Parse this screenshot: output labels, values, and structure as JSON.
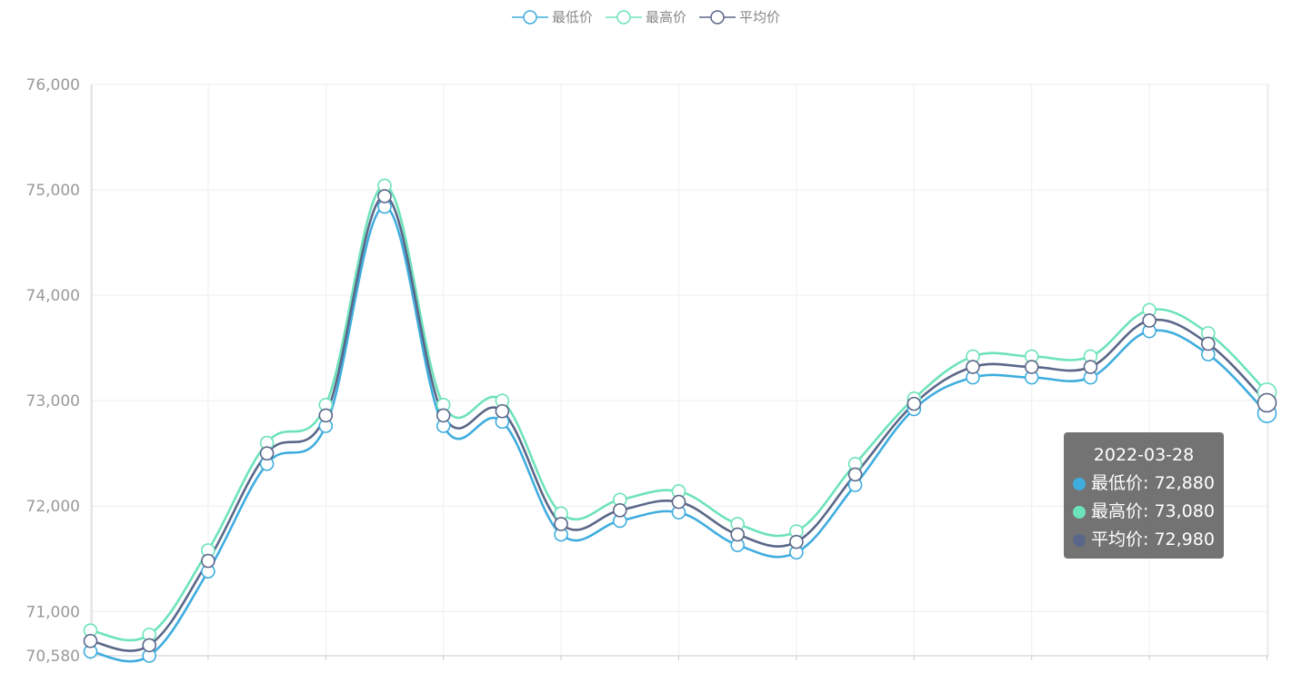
{
  "legend": [
    {
      "label": "最低价",
      "color": "#3fadde"
    },
    {
      "label": "最高价",
      "color": "#6de3bb"
    },
    {
      "label": "平均价",
      "color": "#5b6789"
    }
  ],
  "tooltip": {
    "date": "2022-03-28",
    "rows": [
      {
        "label": "最低价: 72,880",
        "color": "#3fadde"
      },
      {
        "label": "最高价: 73,080",
        "color": "#6de3bb"
      },
      {
        "label": "平均价: 72,980",
        "color": "#5b6789"
      }
    ]
  },
  "chart_data": {
    "type": "line",
    "title": "",
    "xlabel": "",
    "ylabel": "",
    "ylim": [
      70580,
      76000
    ],
    "yticks": [
      "76,000",
      "75,000",
      "74,000",
      "73,000",
      "72,000",
      "71,000",
      "70,580"
    ],
    "ytick_values": [
      76000,
      75000,
      74000,
      73000,
      72000,
      71000,
      70580
    ],
    "smooth": true,
    "grid": true,
    "series": [
      {
        "name": "最低价",
        "color": "#3fadde",
        "values": [
          70620,
          70580,
          71380,
          72400,
          72760,
          74840,
          72760,
          72800,
          71730,
          71860,
          71940,
          71630,
          71560,
          72200,
          72920,
          73220,
          73220,
          73220,
          73660,
          73440,
          72880
        ]
      },
      {
        "name": "最高价",
        "color": "#6de3bb",
        "values": [
          70820,
          70780,
          71580,
          72600,
          72960,
          75040,
          72960,
          73000,
          71930,
          72060,
          72140,
          71830,
          71760,
          72400,
          73020,
          73420,
          73420,
          73420,
          73860,
          73640,
          73080
        ]
      },
      {
        "name": "平均价",
        "color": "#5b6789",
        "values": [
          70720,
          70680,
          71480,
          72500,
          72860,
          74940,
          72860,
          72900,
          71830,
          71960,
          72040,
          71730,
          71660,
          72300,
          72970,
          73320,
          73320,
          73320,
          73760,
          73540,
          72980
        ]
      }
    ]
  }
}
